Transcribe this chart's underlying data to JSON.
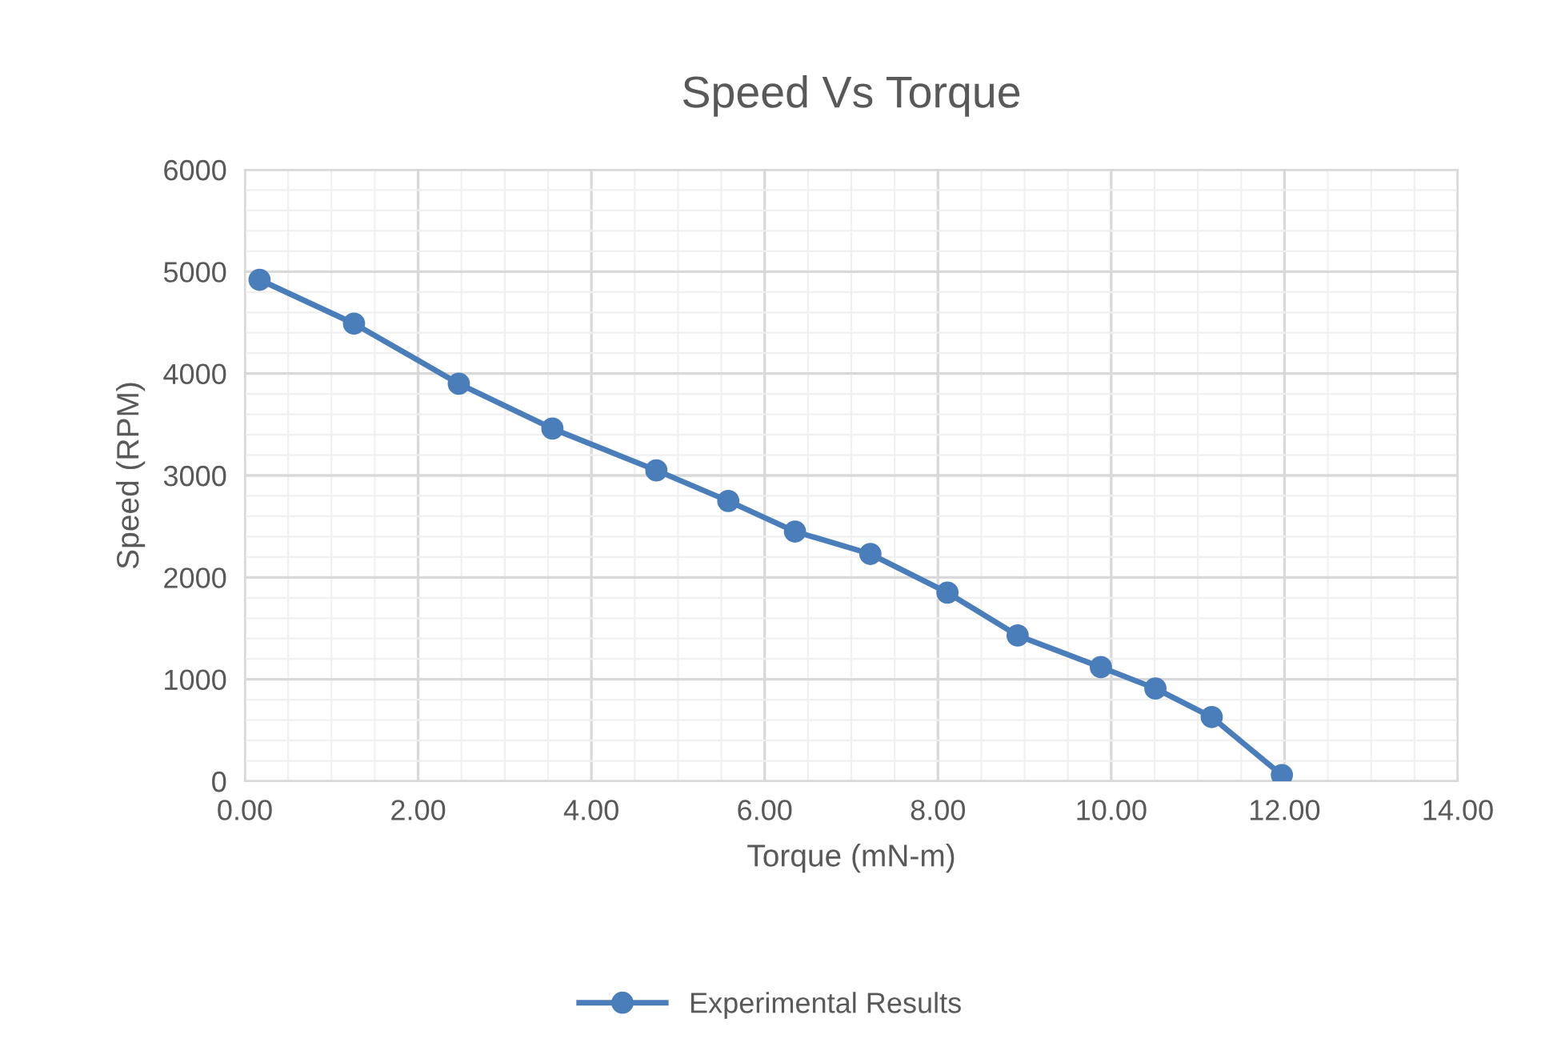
{
  "chart_data": {
    "type": "line",
    "title": "Speed Vs Torque",
    "xlabel": "Torque (mN-m)",
    "ylabel": "Speed (RPM)",
    "series": [
      {
        "name": "Experimental Results",
        "color": "#4a7ebb",
        "x": [
          0.17,
          1.26,
          2.47,
          3.55,
          4.75,
          5.58,
          6.35,
          7.22,
          8.11,
          8.92,
          9.88,
          10.51,
          11.16,
          11.97
        ],
        "values": [
          4920,
          4490,
          3900,
          3460,
          3050,
          2750,
          2450,
          2230,
          1850,
          1430,
          1120,
          910,
          630,
          60
        ]
      }
    ],
    "xlim": [
      0,
      14
    ],
    "xticks": [
      {
        "value": 0,
        "label": "0.00"
      },
      {
        "value": 2,
        "label": "2.00"
      },
      {
        "value": 4,
        "label": "4.00"
      },
      {
        "value": 6,
        "label": "6.00"
      },
      {
        "value": 8,
        "label": "8.00"
      },
      {
        "value": 10,
        "label": "10.00"
      },
      {
        "value": 12,
        "label": "12.00"
      },
      {
        "value": 14,
        "label": "14.00"
      }
    ],
    "ylim": [
      0,
      6000
    ],
    "yticks": [
      0,
      1000,
      2000,
      3000,
      4000,
      5000,
      6000
    ],
    "grid": true,
    "legend": "bottom",
    "marker": "circle",
    "line_style": "solid"
  }
}
